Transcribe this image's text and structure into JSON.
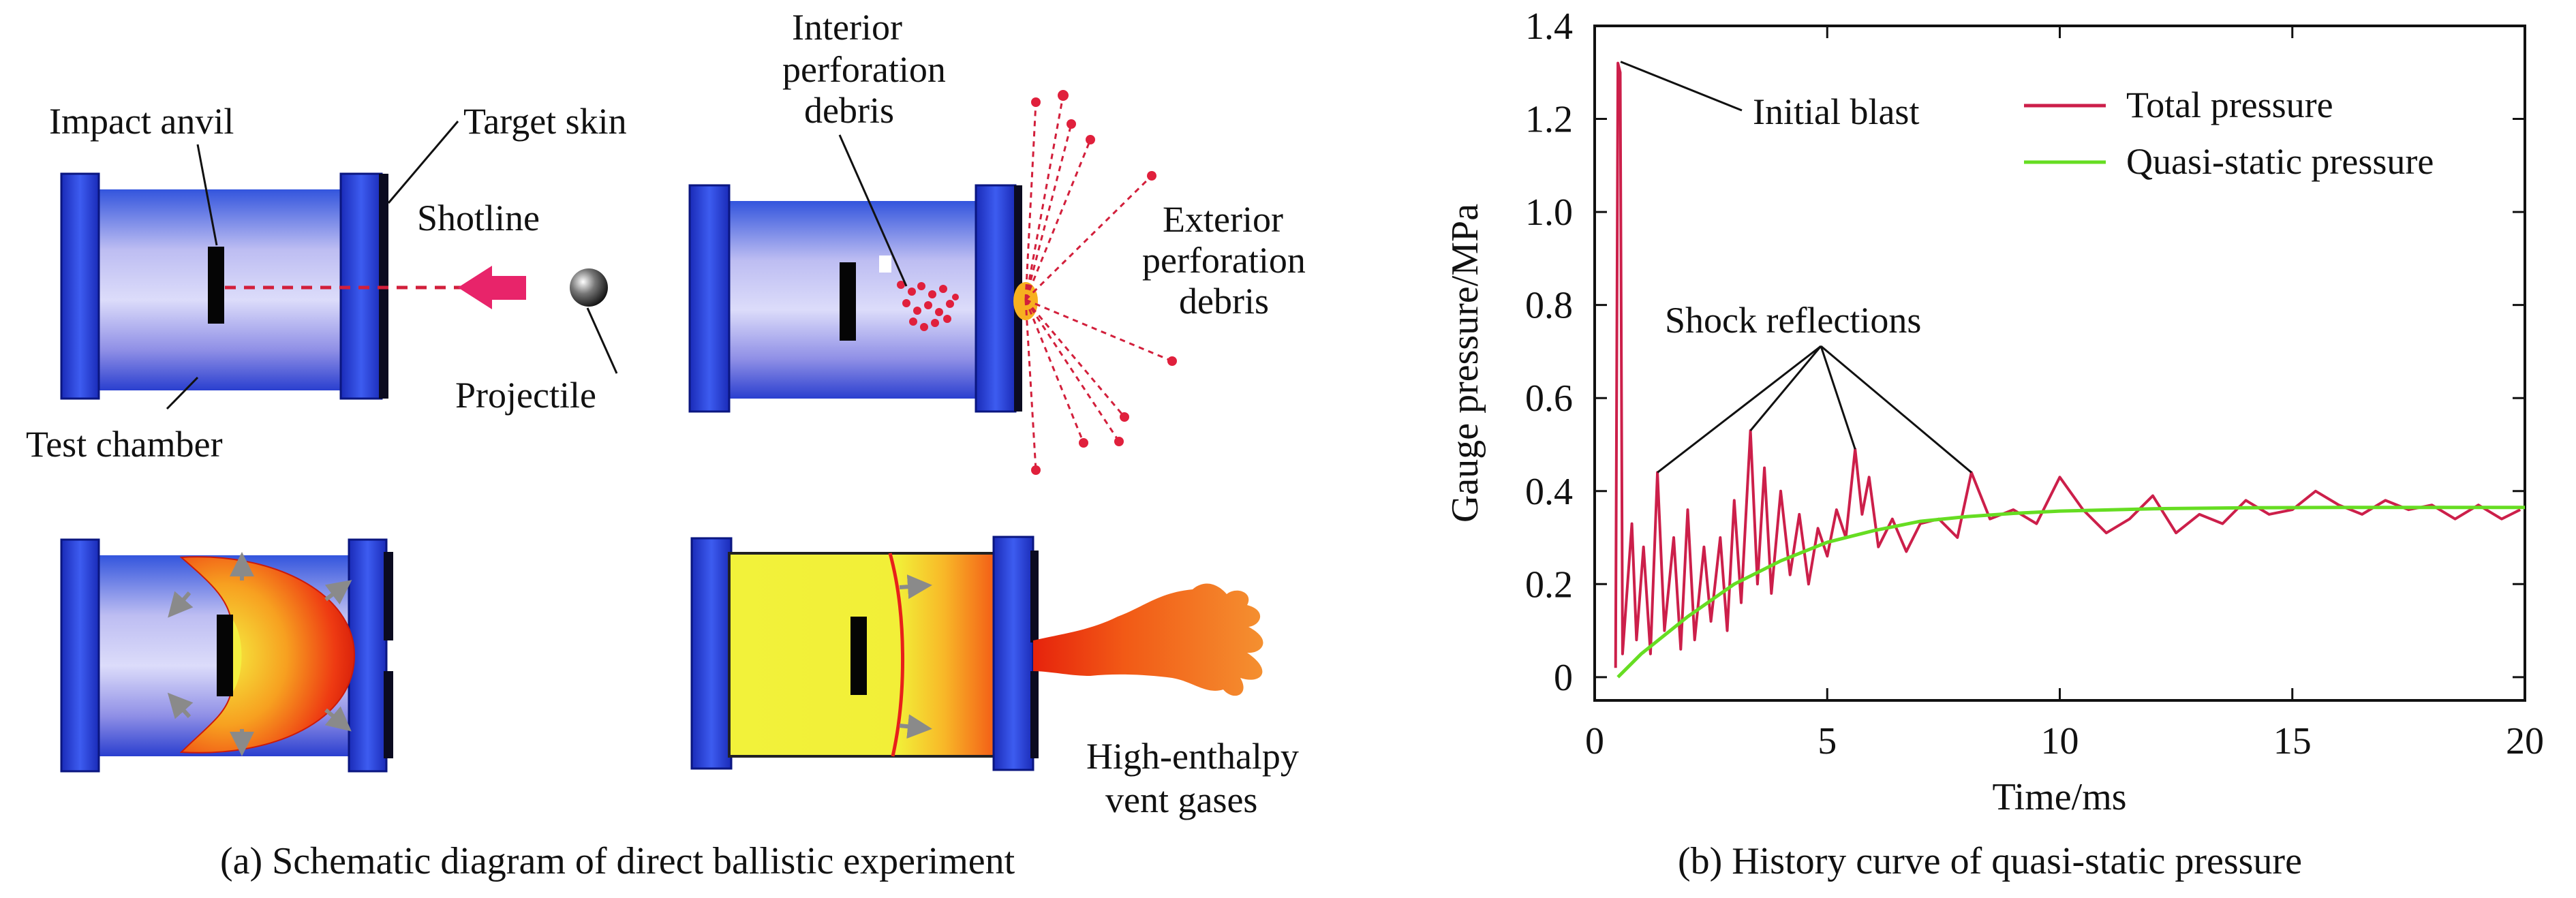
{
  "panel_a": {
    "top_left": {
      "impact_anvil": "Impact anvil",
      "target_skin": "Target skin",
      "shotline": "Shotline",
      "projectile": "Projectile",
      "test_chamber": "Test chamber"
    },
    "top_right": {
      "interior_debris": [
        "Interior",
        "perforation",
        "debris"
      ],
      "exterior_debris": [
        "Exterior",
        "perforation",
        "debris"
      ]
    },
    "bottom_right": {
      "vent_gases": [
        "High-enthalpy",
        "vent gases"
      ]
    },
    "caption": "(a) Schematic diagram of direct ballistic experiment"
  },
  "panel_b": {
    "caption": "(b) History curve of quasi-static pressure",
    "annotations": {
      "initial_blast": "Initial blast",
      "shock_reflections": "Shock reflections"
    }
  },
  "chart_data": {
    "type": "line",
    "xlabel": "Time/ms",
    "ylabel": "Gauge pressure/MPa",
    "xlim": [
      0,
      20
    ],
    "ylim": [
      -0.05,
      1.4
    ],
    "xticks": [
      "0",
      "5",
      "10",
      "15",
      "20"
    ],
    "yticks": [
      "0",
      "0.2",
      "0.4",
      "0.6",
      "0.8",
      "1.0",
      "1.2",
      "1.4"
    ],
    "grid": false,
    "legend_position": "top-right",
    "series": [
      {
        "name": "Total pressure",
        "color": "#cc1f4a",
        "x": [
          0.45,
          0.5,
          0.55,
          0.6,
          0.8,
          0.9,
          1.05,
          1.2,
          1.35,
          1.5,
          1.7,
          1.85,
          2.0,
          2.15,
          2.35,
          2.5,
          2.7,
          2.85,
          3.0,
          3.15,
          3.35,
          3.5,
          3.65,
          3.8,
          4.0,
          4.2,
          4.4,
          4.6,
          4.8,
          5.0,
          5.2,
          5.4,
          5.6,
          5.75,
          5.9,
          6.1,
          6.4,
          6.7,
          7.0,
          7.4,
          7.8,
          8.1,
          8.5,
          9.0,
          9.5,
          10.0,
          10.5,
          11.0,
          11.5,
          12.0,
          12.5,
          13.0,
          13.5,
          14.0,
          14.5,
          15.0,
          15.5,
          16.0,
          16.5,
          17.0,
          17.5,
          18.0,
          18.5,
          19.0,
          19.5,
          19.9
        ],
        "y": [
          0.02,
          1.32,
          1.3,
          0.05,
          0.33,
          0.08,
          0.28,
          0.05,
          0.44,
          0.1,
          0.3,
          0.06,
          0.36,
          0.08,
          0.28,
          0.12,
          0.3,
          0.1,
          0.38,
          0.16,
          0.53,
          0.2,
          0.45,
          0.18,
          0.4,
          0.22,
          0.35,
          0.2,
          0.32,
          0.26,
          0.36,
          0.3,
          0.49,
          0.35,
          0.43,
          0.28,
          0.34,
          0.27,
          0.33,
          0.34,
          0.3,
          0.44,
          0.34,
          0.36,
          0.33,
          0.43,
          0.36,
          0.31,
          0.34,
          0.39,
          0.31,
          0.35,
          0.33,
          0.38,
          0.35,
          0.36,
          0.4,
          0.37,
          0.35,
          0.38,
          0.36,
          0.37,
          0.34,
          0.37,
          0.34,
          0.36
        ]
      },
      {
        "name": "Quasi-static pressure",
        "color": "#66dd22",
        "x": [
          0.5,
          1,
          2,
          3,
          4,
          5,
          6,
          7,
          8,
          9,
          10,
          12,
          14,
          16,
          18,
          20
        ],
        "y": [
          0.0,
          0.05,
          0.13,
          0.2,
          0.25,
          0.29,
          0.315,
          0.335,
          0.345,
          0.352,
          0.357,
          0.362,
          0.364,
          0.365,
          0.365,
          0.365
        ]
      }
    ]
  }
}
